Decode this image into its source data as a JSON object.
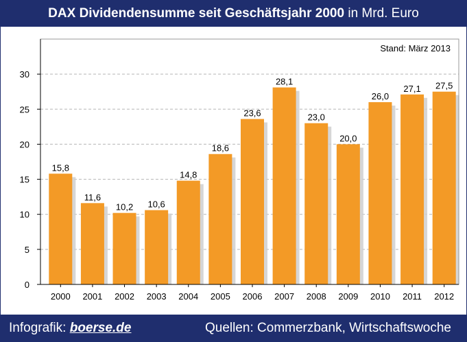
{
  "header": {
    "title_bold": "DAX Dividendensumme seit Geschäftsjahr 2000",
    "title_rest": " in Mrd. Euro"
  },
  "stand_label": "Stand: März 2013",
  "footer": {
    "left_prefix": "Infografik: ",
    "left_brand": "boerse.de",
    "right": "Quellen: Commerzbank, Wirtschaftswoche"
  },
  "colors": {
    "bar": "#f39a26",
    "shadow": "#cfcfcf",
    "header": "#1f2e6e",
    "grid": "#b5b5b5"
  },
  "chart_data": {
    "type": "bar",
    "title": "DAX Dividendensumme seit Geschäftsjahr 2000 in Mrd. Euro",
    "categories": [
      "2000",
      "2001",
      "2002",
      "2003",
      "2004",
      "2005",
      "2006",
      "2007",
      "2008",
      "2009",
      "2010",
      "2011",
      "2012"
    ],
    "values": [
      15.8,
      11.6,
      10.2,
      10.6,
      14.8,
      18.6,
      23.6,
      28.1,
      23.0,
      20.0,
      26.0,
      27.1,
      27.5
    ],
    "value_labels": [
      "15,8",
      "11,6",
      "10,2",
      "10,6",
      "14,8",
      "18,6",
      "23,6",
      "28,1",
      "23,0",
      "20,0",
      "26,0",
      "27,1",
      "27,5"
    ],
    "ylim": [
      0,
      35
    ],
    "yticks": [
      0,
      5,
      10,
      15,
      20,
      25,
      30
    ],
    "grid": true,
    "xlabel": "",
    "ylabel": ""
  }
}
